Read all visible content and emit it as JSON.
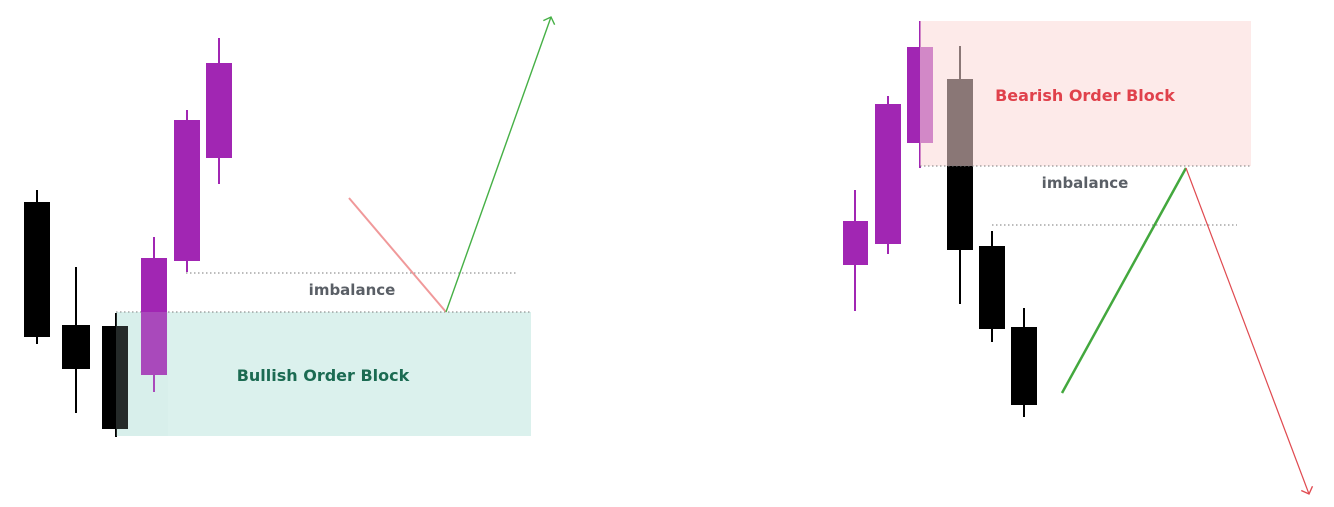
{
  "left_panel": {
    "zone_label": "Bullish Order Block",
    "imbalance_label": "imbalance",
    "colors": {
      "zone_fill": "#dbf1ed",
      "zone_text": "#1b6b52",
      "bull_candle": "#a126b3",
      "bear_candle": "#000000",
      "pullback_line": "#f0999a",
      "impulse_arrow": "#46b046"
    }
  },
  "right_panel": {
    "zone_label": "Bearish Order Block",
    "imbalance_label": "imbalance",
    "colors": {
      "zone_fill": "#fde9e8",
      "zone_text": "#e0414b",
      "bull_candle": "#a126b3",
      "bear_candle": "#000000",
      "pullback_line": "#43a83e",
      "impulse_arrow": "#e04a50"
    }
  }
}
